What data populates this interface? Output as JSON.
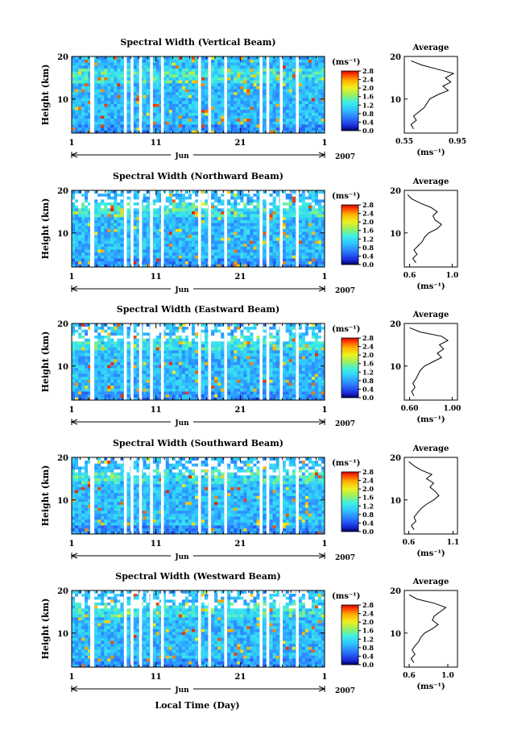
{
  "figure": {
    "xlabel": "Local Time (Day)",
    "colorbar_unit": "(ms⁻¹)",
    "average_title": "Average",
    "average_xunit": "(ms⁻¹)",
    "month_label": "Jun",
    "year_label": "2007"
  },
  "chart_data": [
    {
      "type": "heatmap",
      "title": "Spectral Width (Vertical Beam)",
      "ylabel": "Height (km)",
      "xlim": [
        1,
        31
      ],
      "ylim": [
        2,
        20
      ],
      "x_ticks": [
        "1",
        "11",
        "21",
        "1"
      ],
      "y_ticks": [
        "20",
        "10"
      ],
      "colorbar_ticks": [
        "2.8",
        "2.4",
        "2.0",
        "1.6",
        "1.2",
        "0.8",
        "0.4",
        "0.0"
      ],
      "colorbar_range": [
        0.0,
        2.8
      ],
      "profile": {
        "title": "Average",
        "x_ticks": [
          "0.55",
          "0.95"
        ],
        "xlim": [
          0.55,
          0.95
        ],
        "height": [
          3,
          4,
          5,
          6,
          7,
          8,
          9,
          10,
          11,
          12,
          13,
          14,
          15,
          16,
          17,
          18,
          19
        ],
        "width": [
          0.62,
          0.6,
          0.64,
          0.62,
          0.66,
          0.7,
          0.72,
          0.74,
          0.8,
          0.88,
          0.84,
          0.9,
          0.86,
          0.92,
          0.8,
          0.68,
          0.6
        ]
      }
    },
    {
      "type": "heatmap",
      "title": "Spectral Width (Northward Beam)",
      "ylabel": "Height (km)",
      "xlim": [
        1,
        31
      ],
      "ylim": [
        2,
        20
      ],
      "x_ticks": [
        "1",
        "11",
        "21",
        "1"
      ],
      "y_ticks": [
        "20",
        "10"
      ],
      "colorbar_ticks": [
        "2.8",
        "2.4",
        "2.0",
        "1.6",
        "1.2",
        "0.8",
        "0.4",
        "0.0"
      ],
      "colorbar_range": [
        0.0,
        2.8
      ],
      "profile": {
        "title": "Average",
        "x_ticks": [
          "0.6",
          "1.0"
        ],
        "xlim": [
          0.55,
          1.05
        ],
        "height": [
          3,
          4,
          5,
          6,
          7,
          8,
          9,
          10,
          11,
          12,
          13,
          14,
          15,
          16,
          17,
          18,
          19
        ],
        "width": [
          0.66,
          0.63,
          0.67,
          0.64,
          0.68,
          0.72,
          0.74,
          0.78,
          0.86,
          0.9,
          0.84,
          0.82,
          0.86,
          0.8,
          0.7,
          0.62,
          0.58
        ]
      }
    },
    {
      "type": "heatmap",
      "title": "Spectral Width (Eastward Beam)",
      "ylabel": "Height (km)",
      "xlim": [
        1,
        31
      ],
      "ylim": [
        2,
        20
      ],
      "x_ticks": [
        "1",
        "11",
        "21",
        "1"
      ],
      "y_ticks": [
        "20",
        "10"
      ],
      "colorbar_ticks": [
        "2.8",
        "2.4",
        "2.0",
        "1.6",
        "1.2",
        "0.8",
        "0.4",
        "0.0"
      ],
      "colorbar_range": [
        0.0,
        2.8
      ],
      "profile": {
        "title": "Average",
        "x_ticks": [
          "0.60",
          "1.00"
        ],
        "xlim": [
          0.55,
          1.05
        ],
        "height": [
          3,
          4,
          5,
          6,
          7,
          8,
          9,
          10,
          11,
          12,
          13,
          14,
          15,
          16,
          17,
          18,
          19
        ],
        "width": [
          0.64,
          0.62,
          0.65,
          0.63,
          0.66,
          0.68,
          0.7,
          0.74,
          0.82,
          0.9,
          0.86,
          0.92,
          0.88,
          0.96,
          0.9,
          0.7,
          0.6
        ]
      }
    },
    {
      "type": "heatmap",
      "title": "Spectral Width (Southward Beam)",
      "ylabel": "Height (km)",
      "xlim": [
        1,
        31
      ],
      "ylim": [
        2,
        20
      ],
      "x_ticks": [
        "1",
        "11",
        "21",
        "1"
      ],
      "y_ticks": [
        "20",
        "10"
      ],
      "colorbar_ticks": [
        "2.8",
        "2.4",
        "2.0",
        "1.6",
        "1.2",
        "0.8",
        "0.4",
        "0.0"
      ],
      "colorbar_range": [
        0.0,
        2.8
      ],
      "profile": {
        "title": "Average",
        "x_ticks": [
          "0.6",
          "1.1"
        ],
        "xlim": [
          0.55,
          1.15
        ],
        "height": [
          3,
          4,
          5,
          6,
          7,
          8,
          9,
          10,
          11,
          12,
          13,
          14,
          15,
          16,
          17,
          18,
          19
        ],
        "width": [
          0.66,
          0.63,
          0.68,
          0.66,
          0.7,
          0.74,
          0.8,
          0.88,
          0.94,
          0.9,
          0.84,
          0.88,
          0.8,
          0.86,
          0.74,
          0.66,
          0.6
        ]
      }
    },
    {
      "type": "heatmap",
      "title": "Spectral Width (Westward Beam)",
      "ylabel": "Height (km)",
      "xlim": [
        1,
        31
      ],
      "ylim": [
        2,
        20
      ],
      "x_ticks": [
        "1",
        "11",
        "21",
        "1"
      ],
      "y_ticks": [
        "20",
        "10"
      ],
      "colorbar_ticks": [
        "2.8",
        "2.4",
        "2.0",
        "1.6",
        "1.2",
        "0.8",
        "0.4",
        "0.0"
      ],
      "colorbar_range": [
        0.0,
        2.8
      ],
      "profile": {
        "title": "Average",
        "x_ticks": [
          "0.6",
          "1.0"
        ],
        "xlim": [
          0.55,
          1.1
        ],
        "height": [
          3,
          4,
          5,
          6,
          7,
          8,
          9,
          10,
          11,
          12,
          13,
          14,
          15,
          16,
          17,
          18,
          19
        ],
        "width": [
          0.65,
          0.62,
          0.66,
          0.63,
          0.66,
          0.7,
          0.72,
          0.76,
          0.84,
          0.9,
          0.84,
          0.86,
          0.92,
          0.98,
          0.86,
          0.68,
          0.6
        ]
      }
    }
  ]
}
